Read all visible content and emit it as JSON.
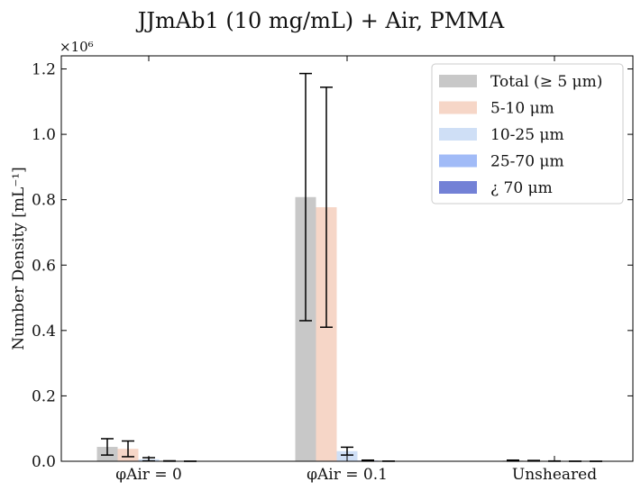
{
  "chart_data": {
    "type": "bar",
    "title": "JJmAb1 (10 mg/mL) + Air, PMMA",
    "ylabel": "Number Density [mL⁻¹]",
    "xlabel": "",
    "y_multiplier_label": "×10⁶",
    "y_scale": 1000000,
    "ylim": [
      0,
      1240000
    ],
    "yticks": [
      0,
      200000,
      400000,
      600000,
      800000,
      1000000,
      1200000
    ],
    "ytick_labels": [
      "0.0",
      "0.2",
      "0.4",
      "0.6",
      "0.8",
      "1.0",
      "1.2"
    ],
    "categories": [
      "φAir = 0",
      "φAir = 0.1",
      "Unsheared"
    ],
    "grid": false,
    "legend_position": "top-right",
    "series": [
      {
        "name": "Total (≥ 5 μm)",
        "color": "#c8c8c8",
        "values": [
          44000,
          808000,
          2000
        ],
        "errors": [
          25000,
          378000,
          1500
        ]
      },
      {
        "name": "5-10 μm",
        "color": "#f6d6c7",
        "values": [
          38000,
          777000,
          1500
        ],
        "errors": [
          24000,
          367000,
          1000
        ]
      },
      {
        "name": "10-25 μm",
        "color": "#cfdff6",
        "values": [
          6000,
          31000,
          500
        ],
        "errors": [
          5000,
          12000,
          400
        ]
      },
      {
        "name": "25-70 μm",
        "color": "#a1bbf7",
        "values": [
          800,
          2000,
          100
        ],
        "errors": [
          600,
          1500,
          100
        ]
      },
      {
        "name": "¿ 70 μm",
        "color": "#7381d6",
        "values": [
          100,
          300,
          0
        ],
        "errors": [
          100,
          200,
          0
        ]
      }
    ]
  }
}
